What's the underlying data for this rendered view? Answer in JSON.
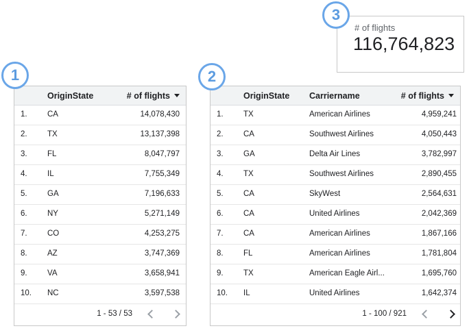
{
  "scorecard": {
    "badge": "3",
    "label": "# of flights",
    "value": "116,764,823"
  },
  "tables": [
    {
      "badge": "1",
      "header": [
        "OriginState",
        "# of flights"
      ],
      "rows": [
        [
          "1.",
          "CA",
          "14,078,430"
        ],
        [
          "2.",
          "TX",
          "13,137,398"
        ],
        [
          "3.",
          "FL",
          "8,047,797"
        ],
        [
          "4.",
          "IL",
          "7,755,349"
        ],
        [
          "5.",
          "GA",
          "7,196,633"
        ],
        [
          "6.",
          "NY",
          "5,271,149"
        ],
        [
          "7.",
          "CO",
          "4,253,275"
        ],
        [
          "8.",
          "AZ",
          "3,747,369"
        ],
        [
          "9.",
          "VA",
          "3,658,941"
        ],
        [
          "10.",
          "NC",
          "3,597,538"
        ]
      ],
      "pagination": "1 - 53 / 53"
    },
    {
      "badge": "2",
      "header": [
        "OriginState",
        "Carriername",
        "# of flights"
      ],
      "rows": [
        [
          "1.",
          "TX",
          "American Airlines",
          "4,959,241"
        ],
        [
          "2.",
          "CA",
          "Southwest Airlines",
          "4,050,443"
        ],
        [
          "3.",
          "GA",
          "Delta Air Lines",
          "3,782,997"
        ],
        [
          "4.",
          "TX",
          "Southwest Airlines",
          "2,890,455"
        ],
        [
          "5.",
          "CA",
          "SkyWest",
          "2,564,631"
        ],
        [
          "6.",
          "CA",
          "United Airlines",
          "2,042,369"
        ],
        [
          "7.",
          "CA",
          "American Airlines",
          "1,867,166"
        ],
        [
          "8.",
          "FL",
          "American Airlines",
          "1,781,804"
        ],
        [
          "9.",
          "TX",
          "American Eagle Airl...",
          "1,695,760"
        ],
        [
          "10.",
          "IL",
          "United Airlines",
          "1,642,374"
        ]
      ],
      "pagination": "1 - 100 / 921"
    }
  ]
}
